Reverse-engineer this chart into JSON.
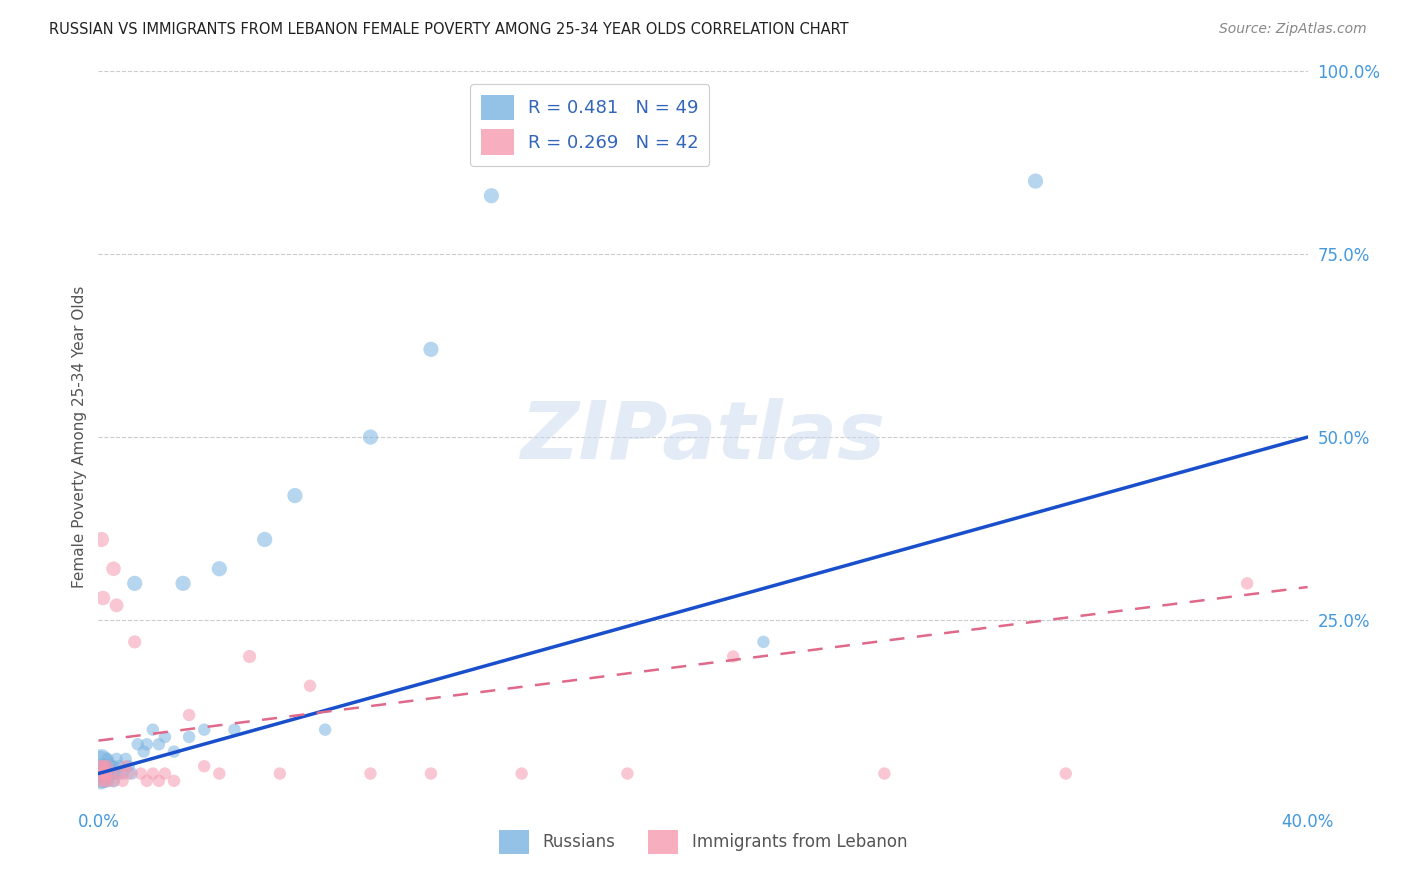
{
  "title": "RUSSIAN VS IMMIGRANTS FROM LEBANON FEMALE POVERTY AMONG 25-34 YEAR OLDS CORRELATION CHART",
  "source": "Source: ZipAtlas.com",
  "ylabel": "Female Poverty Among 25-34 Year Olds",
  "right_yticks": [
    "100.0%",
    "75.0%",
    "50.0%",
    "25.0%"
  ],
  "right_ytick_vals": [
    1.0,
    0.75,
    0.5,
    0.25
  ],
  "watermark_text": "ZIPatlas",
  "background_color": "#ffffff",
  "grid_color": "#cccccc",
  "title_color": "#222222",
  "source_color": "#888888",
  "blue_color": "#7ab3e0",
  "pink_color": "#f59ab0",
  "blue_line_color": "#1a4fcc",
  "pink_line_color": "#e06888",
  "xlim": [
    0.0,
    0.4
  ],
  "ylim": [
    0.0,
    1.0
  ],
  "blue_trend_x": [
    0.0,
    0.4
  ],
  "blue_trend_y": [
    0.04,
    0.5
  ],
  "pink_trend_x": [
    0.0,
    0.4
  ],
  "pink_trend_y": [
    0.085,
    0.295
  ],
  "russians_x": [
    0.0005,
    0.0005,
    0.0008,
    0.001,
    0.001,
    0.0012,
    0.0015,
    0.0015,
    0.002,
    0.002,
    0.002,
    0.0025,
    0.003,
    0.003,
    0.003,
    0.003,
    0.004,
    0.004,
    0.005,
    0.005,
    0.005,
    0.006,
    0.006,
    0.007,
    0.008,
    0.009,
    0.01,
    0.011,
    0.012,
    0.013,
    0.015,
    0.016,
    0.018,
    0.02,
    0.022,
    0.025,
    0.028,
    0.03,
    0.035,
    0.04,
    0.045,
    0.055,
    0.065,
    0.075,
    0.09,
    0.11,
    0.13,
    0.22,
    0.31
  ],
  "russians_y": [
    0.05,
    0.04,
    0.03,
    0.06,
    0.04,
    0.05,
    0.03,
    0.05,
    0.04,
    0.03,
    0.05,
    0.04,
    0.05,
    0.03,
    0.04,
    0.06,
    0.04,
    0.05,
    0.03,
    0.05,
    0.04,
    0.06,
    0.04,
    0.05,
    0.04,
    0.06,
    0.05,
    0.04,
    0.3,
    0.08,
    0.07,
    0.08,
    0.1,
    0.08,
    0.09,
    0.07,
    0.3,
    0.09,
    0.1,
    0.32,
    0.1,
    0.36,
    0.42,
    0.1,
    0.5,
    0.62,
    0.83,
    0.22,
    0.85
  ],
  "russians_size": [
    500,
    200,
    150,
    200,
    150,
    120,
    120,
    100,
    110,
    90,
    100,
    100,
    100,
    90,
    80,
    80,
    100,
    90,
    90,
    80,
    80,
    80,
    80,
    80,
    80,
    80,
    80,
    80,
    120,
    80,
    80,
    80,
    80,
    80,
    80,
    80,
    120,
    80,
    80,
    120,
    80,
    120,
    120,
    80,
    120,
    120,
    120,
    80,
    120
  ],
  "lebanon_x": [
    0.0003,
    0.0005,
    0.0007,
    0.001,
    0.001,
    0.0012,
    0.0015,
    0.002,
    0.002,
    0.002,
    0.0025,
    0.003,
    0.003,
    0.004,
    0.005,
    0.005,
    0.006,
    0.007,
    0.008,
    0.009,
    0.01,
    0.012,
    0.014,
    0.016,
    0.018,
    0.02,
    0.022,
    0.025,
    0.03,
    0.035,
    0.04,
    0.05,
    0.06,
    0.07,
    0.09,
    0.11,
    0.14,
    0.175,
    0.21,
    0.26,
    0.32,
    0.38
  ],
  "lebanon_y": [
    0.04,
    0.05,
    0.03,
    0.36,
    0.04,
    0.05,
    0.28,
    0.04,
    0.03,
    0.05,
    0.04,
    0.03,
    0.05,
    0.04,
    0.03,
    0.32,
    0.27,
    0.04,
    0.03,
    0.05,
    0.04,
    0.22,
    0.04,
    0.03,
    0.04,
    0.03,
    0.04,
    0.03,
    0.12,
    0.05,
    0.04,
    0.2,
    0.04,
    0.16,
    0.04,
    0.04,
    0.04,
    0.04,
    0.2,
    0.04,
    0.04,
    0.3
  ],
  "lebanon_size": [
    80,
    80,
    80,
    120,
    80,
    80,
    110,
    80,
    80,
    80,
    80,
    80,
    80,
    80,
    80,
    110,
    100,
    80,
    80,
    80,
    80,
    90,
    80,
    80,
    80,
    80,
    80,
    80,
    80,
    80,
    80,
    90,
    80,
    80,
    80,
    80,
    80,
    80,
    80,
    80,
    80,
    80
  ]
}
